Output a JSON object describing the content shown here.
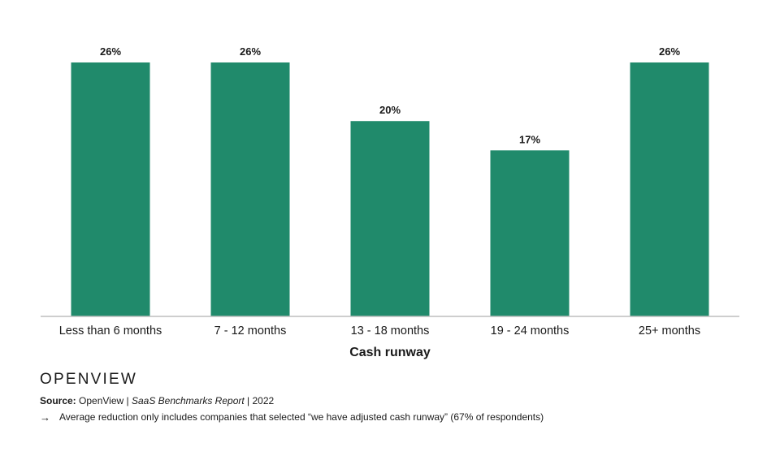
{
  "chart_data": {
    "type": "bar",
    "categories": [
      "Less than 6 months",
      "7 - 12 months",
      "13 - 18 months",
      "19 - 24 months",
      "25+ months"
    ],
    "values": [
      26,
      26,
      20,
      17,
      26
    ],
    "value_labels": [
      "26%",
      "26%",
      "20%",
      "17%",
      "26%"
    ],
    "unit": "%",
    "xlabel": "Cash runway",
    "ylabel": "",
    "ylim": [
      0,
      26
    ],
    "grid": false,
    "bar_color": "#208a6b",
    "axis_color": "#bdbdbd"
  },
  "brand": "OPENVIEW",
  "source": {
    "label": "Source:",
    "org": "OpenView | ",
    "report": "SaaS Benchmarks Report",
    "year": " | 2022"
  },
  "note": {
    "icon": "arrow-right-icon",
    "text": "Average reduction only includes companies that selected “we have adjusted cash runway” (67% of respondents)"
  }
}
